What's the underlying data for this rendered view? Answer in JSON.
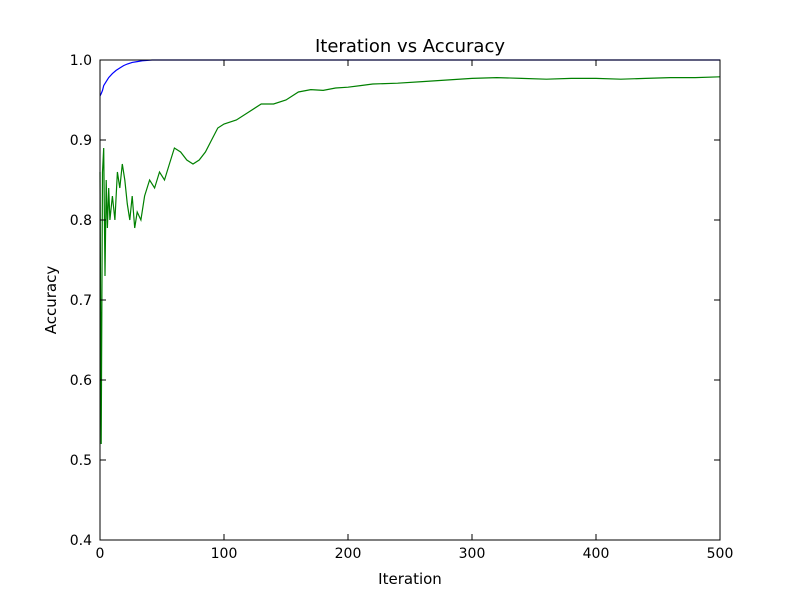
{
  "chart_data": {
    "type": "line",
    "title": "Iteration vs Accuracy",
    "xlabel": "Iteration",
    "ylabel": "Accuracy",
    "xlim": [
      0,
      500
    ],
    "ylim": [
      0.4,
      1.0
    ],
    "xticks": [
      0,
      100,
      200,
      300,
      400,
      500
    ],
    "yticks": [
      0.4,
      0.5,
      0.6,
      0.7,
      0.8,
      0.9,
      1.0
    ],
    "xtick_labels": [
      "0",
      "100",
      "200",
      "300",
      "400",
      "500"
    ],
    "ytick_labels": [
      "0.4",
      "0.5",
      "0.6",
      "0.7",
      "0.8",
      "0.9",
      "1.0"
    ],
    "grid": false,
    "series": [
      {
        "color": "#0000ff",
        "points": [
          [
            0,
            0.955
          ],
          [
            1,
            0.958
          ],
          [
            2,
            0.962
          ],
          [
            3,
            0.968
          ],
          [
            5,
            0.973
          ],
          [
            7,
            0.978
          ],
          [
            10,
            0.983
          ],
          [
            13,
            0.987
          ],
          [
            16,
            0.99
          ],
          [
            19,
            0.993
          ],
          [
            22,
            0.995
          ],
          [
            26,
            0.997
          ],
          [
            30,
            0.998
          ],
          [
            34,
            0.999
          ],
          [
            38,
            0.9995
          ],
          [
            42,
            1.0
          ],
          [
            500,
            1.0
          ]
        ]
      },
      {
        "color": "#008000",
        "points": [
          [
            0,
            0.86
          ],
          [
            1,
            0.52
          ],
          [
            2,
            0.86
          ],
          [
            3,
            0.89
          ],
          [
            4,
            0.73
          ],
          [
            5,
            0.85
          ],
          [
            6,
            0.79
          ],
          [
            7,
            0.84
          ],
          [
            8,
            0.8
          ],
          [
            10,
            0.83
          ],
          [
            12,
            0.8
          ],
          [
            14,
            0.86
          ],
          [
            16,
            0.84
          ],
          [
            18,
            0.87
          ],
          [
            20,
            0.85
          ],
          [
            22,
            0.82
          ],
          [
            24,
            0.8
          ],
          [
            26,
            0.83
          ],
          [
            28,
            0.79
          ],
          [
            30,
            0.81
          ],
          [
            33,
            0.8
          ],
          [
            36,
            0.83
          ],
          [
            40,
            0.85
          ],
          [
            44,
            0.84
          ],
          [
            48,
            0.86
          ],
          [
            52,
            0.85
          ],
          [
            56,
            0.87
          ],
          [
            60,
            0.89
          ],
          [
            65,
            0.885
          ],
          [
            70,
            0.875
          ],
          [
            75,
            0.87
          ],
          [
            80,
            0.875
          ],
          [
            85,
            0.885
          ],
          [
            90,
            0.9
          ],
          [
            95,
            0.915
          ],
          [
            100,
            0.92
          ],
          [
            110,
            0.925
          ],
          [
            120,
            0.935
          ],
          [
            130,
            0.945
          ],
          [
            140,
            0.945
          ],
          [
            150,
            0.95
          ],
          [
            160,
            0.96
          ],
          [
            170,
            0.963
          ],
          [
            180,
            0.962
          ],
          [
            190,
            0.965
          ],
          [
            200,
            0.966
          ],
          [
            210,
            0.968
          ],
          [
            220,
            0.97
          ],
          [
            240,
            0.971
          ],
          [
            260,
            0.973
          ],
          [
            280,
            0.975
          ],
          [
            300,
            0.977
          ],
          [
            320,
            0.978
          ],
          [
            340,
            0.977
          ],
          [
            360,
            0.976
          ],
          [
            380,
            0.977
          ],
          [
            400,
            0.977
          ],
          [
            420,
            0.976
          ],
          [
            440,
            0.977
          ],
          [
            460,
            0.978
          ],
          [
            480,
            0.978
          ],
          [
            500,
            0.979
          ]
        ]
      }
    ]
  }
}
